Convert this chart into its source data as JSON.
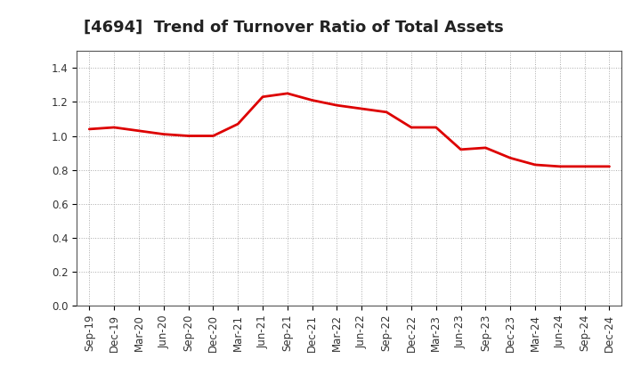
{
  "title": "[4694]  Trend of Turnover Ratio of Total Assets",
  "x_labels": [
    "Sep-19",
    "Dec-19",
    "Mar-20",
    "Jun-20",
    "Sep-20",
    "Dec-20",
    "Mar-21",
    "Jun-21",
    "Sep-21",
    "Dec-21",
    "Mar-22",
    "Jun-22",
    "Sep-22",
    "Dec-22",
    "Mar-23",
    "Jun-23",
    "Sep-23",
    "Dec-23",
    "Mar-24",
    "Jun-24",
    "Sep-24",
    "Dec-24"
  ],
  "y_values": [
    1.04,
    1.05,
    1.03,
    1.01,
    1.0,
    1.0,
    1.07,
    1.23,
    1.25,
    1.21,
    1.18,
    1.16,
    1.14,
    1.05,
    1.05,
    0.92,
    0.93,
    0.87,
    0.83,
    0.82,
    0.82,
    0.82
  ],
  "line_color": "#dd0000",
  "line_width": 2.0,
  "ylim": [
    0.0,
    1.5
  ],
  "yticks": [
    0.0,
    0.2,
    0.4,
    0.6,
    0.8,
    1.0,
    1.2,
    1.4
  ],
  "grid_color": "#aaaaaa",
  "grid_style": "dotted",
  "background_color": "#ffffff",
  "title_fontsize": 13,
  "tick_fontsize": 8.5
}
